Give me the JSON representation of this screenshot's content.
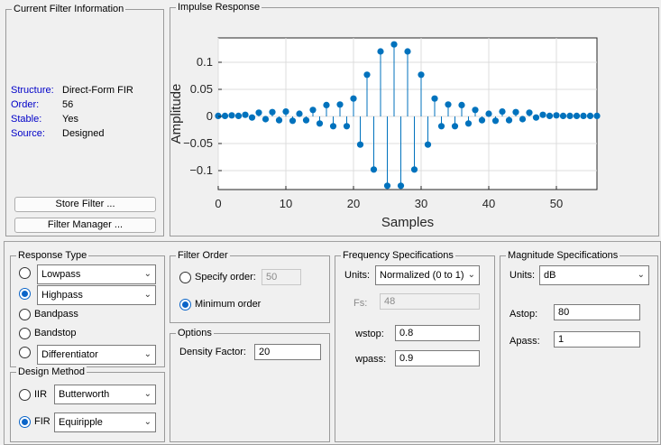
{
  "current_filter": {
    "title": "Current Filter Information",
    "rows": [
      {
        "label": "Structure:",
        "value": "Direct-Form FIR"
      },
      {
        "label": "Order:",
        "value": "56"
      },
      {
        "label": "Stable:",
        "value": "Yes"
      },
      {
        "label": "Source:",
        "value": "Designed"
      }
    ],
    "store_filter_label": "Store Filter ...",
    "filter_manager_label": "Filter Manager ..."
  },
  "plot": {
    "group_title": "Impulse Response",
    "chart_data": {
      "type": "stem",
      "title": "",
      "xlabel": "Samples",
      "ylabel": "Amplitude",
      "xlim": [
        0,
        56
      ],
      "ylim": [
        -0.135,
        0.145
      ],
      "xticks": [
        0,
        10,
        20,
        30,
        40,
        50
      ],
      "yticks": [
        0.1,
        0.05,
        0,
        -0.05,
        -0.1
      ],
      "ytick_labels": [
        "0.1",
        "0.05",
        "0",
        "−0.05",
        "−0.1"
      ],
      "grid": true,
      "color": "#0072bd",
      "x": [
        0,
        1,
        2,
        3,
        4,
        5,
        6,
        7,
        8,
        9,
        10,
        11,
        12,
        13,
        14,
        15,
        16,
        17,
        18,
        19,
        20,
        21,
        22,
        23,
        24,
        25,
        26,
        27,
        28,
        29,
        30,
        31,
        32,
        33,
        34,
        35,
        36,
        37,
        38,
        39,
        40,
        41,
        42,
        43,
        44,
        45,
        46,
        47,
        48,
        49,
        50,
        51,
        52,
        53,
        54,
        55,
        56
      ],
      "values": [
        0.001,
        0.001,
        0.002,
        0.001,
        0.003,
        -0.002,
        0.007,
        -0.005,
        0.008,
        -0.007,
        0.009,
        -0.008,
        0.005,
        -0.007,
        0.012,
        -0.013,
        0.021,
        -0.018,
        0.022,
        -0.018,
        0.033,
        -0.052,
        0.077,
        -0.098,
        0.12,
        -0.128,
        0.133,
        -0.128,
        0.12,
        -0.098,
        0.077,
        -0.052,
        0.033,
        -0.018,
        0.022,
        -0.018,
        0.021,
        -0.013,
        0.012,
        -0.007,
        0.005,
        -0.008,
        0.009,
        -0.007,
        0.008,
        -0.005,
        0.007,
        -0.002,
        0.003,
        0.001,
        0.002,
        0.001,
        0.001,
        0.001,
        0.001,
        0.001,
        0.001
      ]
    }
  },
  "response_type": {
    "title": "Response Type",
    "lowpass": "Lowpass",
    "highpass": "Highpass",
    "bandpass": "Bandpass",
    "bandstop": "Bandstop",
    "differentiator": "Differentiator",
    "selected": "highpass"
  },
  "design_method": {
    "title": "Design Method",
    "iir_label": "IIR",
    "iir_value": "Butterworth",
    "fir_label": "FIR",
    "fir_value": "Equiripple",
    "selected": "fir"
  },
  "filter_order": {
    "title": "Filter Order",
    "specify_label": "Specify order:",
    "specify_value": "50",
    "minimum_label": "Minimum order",
    "selected": "minimum"
  },
  "options": {
    "title": "Options",
    "density_label": "Density Factor:",
    "density_value": "20"
  },
  "freq_specs": {
    "title": "Frequency Specifications",
    "units_label": "Units:",
    "units_value": "Normalized (0 to 1)",
    "fs_label": "Fs:",
    "fs_value": "48",
    "wstop_label": "wstop:",
    "wstop_value": "0.8",
    "wpass_label": "wpass:",
    "wpass_value": "0.9"
  },
  "mag_specs": {
    "title": "Magnitude Specifications",
    "units_label": "Units:",
    "units_value": "dB",
    "astop_label": "Astop:",
    "astop_value": "80",
    "apass_label": "Apass:",
    "apass_value": "1"
  }
}
